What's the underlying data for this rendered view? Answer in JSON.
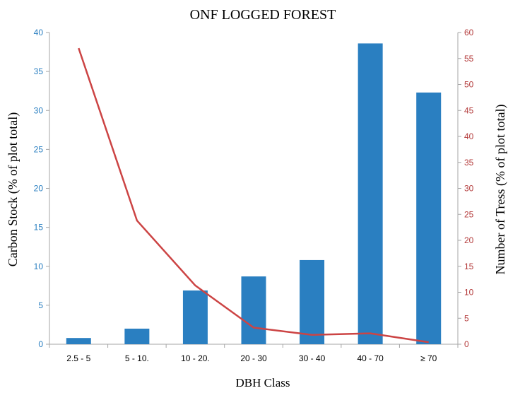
{
  "chart_data": {
    "type": "bar",
    "title": "ONF LOGGED FOREST",
    "xlabel": "DBH Class",
    "categories": [
      "2.5 - 5",
      "5 - 10.",
      "10 - 20.",
      "20 - 30",
      "30 - 40",
      "40 - 70",
      "≥ 70"
    ],
    "series": [
      {
        "type": "bar",
        "axis": "left",
        "values": [
          0.8,
          2.0,
          6.9,
          8.7,
          10.8,
          38.6,
          32.3
        ]
      },
      {
        "type": "line",
        "axis": "right",
        "values": [
          57.0,
          23.8,
          11.3,
          3.2,
          1.8,
          2.1,
          0.4
        ]
      }
    ],
    "y_left": {
      "label": "Carbon Stock (% of plot total)",
      "lim": [
        0,
        40
      ],
      "ticks": [
        0,
        5,
        10,
        15,
        20,
        25,
        30,
        35,
        40
      ]
    },
    "y_right": {
      "label": "Number of Tress (% of plot total)",
      "lim": [
        0,
        60
      ],
      "ticks": [
        0,
        5,
        10,
        15,
        20,
        25,
        30,
        35,
        40,
        45,
        50,
        55,
        60
      ]
    },
    "grid": false,
    "legend": "none",
    "colors": {
      "bar": "#2a7fc1",
      "line": "#cc4444",
      "left_axis": "#2a7fc1",
      "right_axis": "#b33a3a",
      "axis_line": "#a6a6a6"
    }
  }
}
